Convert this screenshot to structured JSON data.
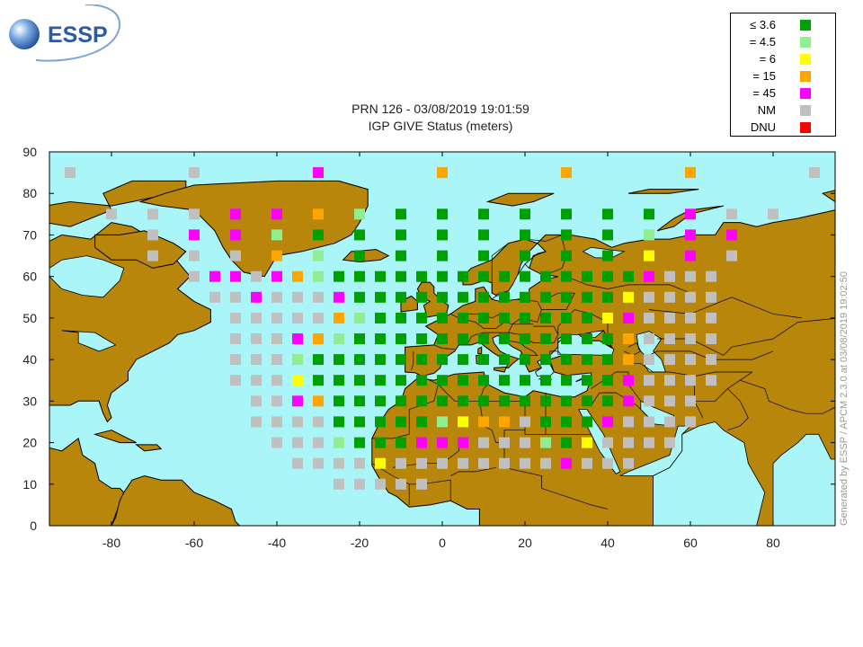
{
  "header": {
    "logo_text": "ESSP",
    "title_line1": "PRN 126 - 03/08/2019 19:01:59",
    "title_line2": "IGP GIVE Status (meters)"
  },
  "legend": [
    {
      "label": "≤ 3.6",
      "color": "#00a000"
    },
    {
      "label": "= 4.5",
      "color": "#90ee90"
    },
    {
      "label": "= 6",
      "color": "#ffff00"
    },
    {
      "label": "= 15",
      "color": "#ffa500"
    },
    {
      "label": "= 45",
      "color": "#ff00ff"
    },
    {
      "label": "NM",
      "color": "#c0c0c0"
    },
    {
      "label": "DNU",
      "color": "#ff0000"
    }
  ],
  "credit": "Generated by ESSP / APCM 2.3.0 at 03/08/2019 19:02:50",
  "colors": {
    "ocean": "#aaf5f8",
    "land": "#b8860b",
    "border": "#000000"
  },
  "chart_data": {
    "type": "map-grid",
    "xlim": [
      -95,
      95
    ],
    "ylim": [
      0,
      90
    ],
    "xticks": [
      "-80",
      "-60",
      "-40",
      "-20",
      "0",
      "20",
      "40",
      "60",
      "80"
    ],
    "xtick_values": [
      -80,
      -60,
      -40,
      -20,
      0,
      20,
      40,
      60,
      80
    ],
    "yticks": [
      "0",
      "10",
      "20",
      "30",
      "40",
      "50",
      "60",
      "70",
      "80",
      "90"
    ],
    "ytick_values": [
      0,
      10,
      20,
      30,
      40,
      50,
      60,
      70,
      80,
      90
    ],
    "status_codes": {
      "G": "≤ 3.6",
      "L": "= 4.5",
      "Y": "= 6",
      "O": "= 15",
      "M": "= 45",
      "N": "NM",
      "R": "DNU"
    },
    "rows": [
      {
        "lat": 85,
        "cells": [
          [
            -90,
            "N"
          ],
          [
            -60,
            "N"
          ],
          [
            -30,
            "M"
          ],
          [
            0,
            "O"
          ],
          [
            30,
            "O"
          ],
          [
            60,
            "O"
          ],
          [
            90,
            "N"
          ]
        ]
      },
      {
        "lat": 75,
        "cells": [
          [
            -80,
            "N"
          ],
          [
            -70,
            "N"
          ],
          [
            -60,
            "N"
          ],
          [
            -50,
            "M"
          ],
          [
            -40,
            "M"
          ],
          [
            -30,
            "O"
          ],
          [
            -20,
            "L"
          ],
          [
            -10,
            "G"
          ],
          [
            0,
            "G"
          ],
          [
            10,
            "G"
          ],
          [
            20,
            "G"
          ],
          [
            30,
            "G"
          ],
          [
            40,
            "G"
          ],
          [
            50,
            "G"
          ],
          [
            60,
            "M"
          ],
          [
            70,
            "N"
          ],
          [
            80,
            "N"
          ]
        ]
      },
      {
        "lat": 70,
        "cells": [
          [
            -70,
            "N"
          ],
          [
            -60,
            "M"
          ],
          [
            -50,
            "M"
          ],
          [
            -40,
            "L"
          ],
          [
            -30,
            "G"
          ],
          [
            -20,
            "G"
          ],
          [
            -10,
            "G"
          ],
          [
            0,
            "G"
          ],
          [
            10,
            "G"
          ],
          [
            20,
            "G"
          ],
          [
            30,
            "G"
          ],
          [
            40,
            "G"
          ],
          [
            50,
            "L"
          ],
          [
            60,
            "M"
          ],
          [
            70,
            "M"
          ]
        ]
      },
      {
        "lat": 65,
        "cells": [
          [
            -70,
            "N"
          ],
          [
            -60,
            "N"
          ],
          [
            -50,
            "N"
          ],
          [
            -40,
            "O"
          ],
          [
            -30,
            "L"
          ],
          [
            -20,
            "G"
          ],
          [
            -10,
            "G"
          ],
          [
            0,
            "G"
          ],
          [
            10,
            "G"
          ],
          [
            20,
            "G"
          ],
          [
            30,
            "G"
          ],
          [
            40,
            "G"
          ],
          [
            50,
            "Y"
          ],
          [
            60,
            "M"
          ],
          [
            70,
            "N"
          ]
        ]
      },
      {
        "lat": 60,
        "cells": [
          [
            -60,
            "N"
          ],
          [
            -55,
            "M"
          ],
          [
            -50,
            "M"
          ],
          [
            -45,
            "N"
          ],
          [
            -40,
            "M"
          ],
          [
            -35,
            "O"
          ],
          [
            -30,
            "L"
          ],
          [
            -25,
            "G"
          ],
          [
            -20,
            "G"
          ],
          [
            -15,
            "G"
          ],
          [
            -10,
            "G"
          ],
          [
            -5,
            "G"
          ],
          [
            0,
            "G"
          ],
          [
            5,
            "G"
          ],
          [
            10,
            "G"
          ],
          [
            15,
            "G"
          ],
          [
            20,
            "G"
          ],
          [
            25,
            "G"
          ],
          [
            30,
            "G"
          ],
          [
            35,
            "G"
          ],
          [
            40,
            "G"
          ],
          [
            45,
            "G"
          ],
          [
            50,
            "M"
          ],
          [
            55,
            "N"
          ],
          [
            60,
            "N"
          ],
          [
            65,
            "N"
          ]
        ]
      },
      {
        "lat": 55,
        "cells": [
          [
            -55,
            "N"
          ],
          [
            -50,
            "N"
          ],
          [
            -45,
            "M"
          ],
          [
            -40,
            "N"
          ],
          [
            -35,
            "N"
          ],
          [
            -30,
            "N"
          ],
          [
            -25,
            "M"
          ],
          [
            -20,
            "G"
          ],
          [
            -15,
            "G"
          ],
          [
            -10,
            "G"
          ],
          [
            -5,
            "G"
          ],
          [
            0,
            "G"
          ],
          [
            5,
            "G"
          ],
          [
            10,
            "G"
          ],
          [
            15,
            "G"
          ],
          [
            20,
            "G"
          ],
          [
            25,
            "G"
          ],
          [
            30,
            "G"
          ],
          [
            35,
            "G"
          ],
          [
            40,
            "G"
          ],
          [
            45,
            "Y"
          ],
          [
            50,
            "N"
          ],
          [
            55,
            "N"
          ],
          [
            60,
            "N"
          ],
          [
            65,
            "N"
          ]
        ]
      },
      {
        "lat": 50,
        "cells": [
          [
            -50,
            "N"
          ],
          [
            -45,
            "N"
          ],
          [
            -40,
            "N"
          ],
          [
            -35,
            "N"
          ],
          [
            -30,
            "N"
          ],
          [
            -25,
            "O"
          ],
          [
            -20,
            "L"
          ],
          [
            -15,
            "G"
          ],
          [
            -10,
            "G"
          ],
          [
            -5,
            "G"
          ],
          [
            0,
            "G"
          ],
          [
            5,
            "G"
          ],
          [
            10,
            "G"
          ],
          [
            15,
            "G"
          ],
          [
            20,
            "G"
          ],
          [
            25,
            "G"
          ],
          [
            30,
            "G"
          ],
          [
            35,
            "G"
          ],
          [
            40,
            "Y"
          ],
          [
            45,
            "M"
          ],
          [
            50,
            "N"
          ],
          [
            55,
            "N"
          ],
          [
            60,
            "N"
          ],
          [
            65,
            "N"
          ]
        ]
      },
      {
        "lat": 45,
        "cells": [
          [
            -50,
            "N"
          ],
          [
            -45,
            "N"
          ],
          [
            -40,
            "N"
          ],
          [
            -35,
            "M"
          ],
          [
            -30,
            "O"
          ],
          [
            -25,
            "L"
          ],
          [
            -20,
            "G"
          ],
          [
            -15,
            "G"
          ],
          [
            -10,
            "G"
          ],
          [
            -5,
            "G"
          ],
          [
            0,
            "G"
          ],
          [
            5,
            "G"
          ],
          [
            10,
            "G"
          ],
          [
            15,
            "G"
          ],
          [
            20,
            "G"
          ],
          [
            25,
            "G"
          ],
          [
            30,
            "G"
          ],
          [
            35,
            "G"
          ],
          [
            40,
            "G"
          ],
          [
            45,
            "O"
          ],
          [
            50,
            "N"
          ],
          [
            55,
            "N"
          ],
          [
            60,
            "N"
          ],
          [
            65,
            "N"
          ]
        ]
      },
      {
        "lat": 40,
        "cells": [
          [
            -50,
            "N"
          ],
          [
            -45,
            "N"
          ],
          [
            -40,
            "N"
          ],
          [
            -35,
            "L"
          ],
          [
            -30,
            "G"
          ],
          [
            -25,
            "G"
          ],
          [
            -20,
            "G"
          ],
          [
            -15,
            "G"
          ],
          [
            -10,
            "G"
          ],
          [
            -5,
            "G"
          ],
          [
            0,
            "G"
          ],
          [
            5,
            "G"
          ],
          [
            10,
            "G"
          ],
          [
            15,
            "G"
          ],
          [
            20,
            "G"
          ],
          [
            25,
            "G"
          ],
          [
            30,
            "G"
          ],
          [
            35,
            "G"
          ],
          [
            40,
            "G"
          ],
          [
            45,
            "O"
          ],
          [
            50,
            "N"
          ],
          [
            55,
            "N"
          ],
          [
            60,
            "N"
          ],
          [
            65,
            "N"
          ]
        ]
      },
      {
        "lat": 35,
        "cells": [
          [
            -50,
            "N"
          ],
          [
            -45,
            "N"
          ],
          [
            -40,
            "N"
          ],
          [
            -35,
            "Y"
          ],
          [
            -30,
            "G"
          ],
          [
            -25,
            "G"
          ],
          [
            -20,
            "G"
          ],
          [
            -15,
            "G"
          ],
          [
            -10,
            "G"
          ],
          [
            -5,
            "G"
          ],
          [
            0,
            "G"
          ],
          [
            5,
            "G"
          ],
          [
            10,
            "G"
          ],
          [
            15,
            "G"
          ],
          [
            20,
            "G"
          ],
          [
            25,
            "G"
          ],
          [
            30,
            "G"
          ],
          [
            35,
            "G"
          ],
          [
            40,
            "G"
          ],
          [
            45,
            "M"
          ],
          [
            50,
            "N"
          ],
          [
            55,
            "N"
          ],
          [
            60,
            "N"
          ],
          [
            65,
            "N"
          ]
        ]
      },
      {
        "lat": 30,
        "cells": [
          [
            -45,
            "N"
          ],
          [
            -40,
            "N"
          ],
          [
            -35,
            "M"
          ],
          [
            -30,
            "O"
          ],
          [
            -25,
            "G"
          ],
          [
            -20,
            "G"
          ],
          [
            -15,
            "G"
          ],
          [
            -10,
            "G"
          ],
          [
            -5,
            "G"
          ],
          [
            0,
            "G"
          ],
          [
            5,
            "G"
          ],
          [
            10,
            "G"
          ],
          [
            15,
            "G"
          ],
          [
            20,
            "G"
          ],
          [
            25,
            "G"
          ],
          [
            30,
            "G"
          ],
          [
            35,
            "G"
          ],
          [
            40,
            "G"
          ],
          [
            45,
            "M"
          ],
          [
            50,
            "N"
          ],
          [
            55,
            "N"
          ],
          [
            60,
            "N"
          ]
        ]
      },
      {
        "lat": 25,
        "cells": [
          [
            -45,
            "N"
          ],
          [
            -40,
            "N"
          ],
          [
            -35,
            "N"
          ],
          [
            -30,
            "N"
          ],
          [
            -25,
            "G"
          ],
          [
            -20,
            "G"
          ],
          [
            -15,
            "G"
          ],
          [
            -10,
            "G"
          ],
          [
            -5,
            "G"
          ],
          [
            0,
            "L"
          ],
          [
            5,
            "Y"
          ],
          [
            10,
            "O"
          ],
          [
            15,
            "O"
          ],
          [
            20,
            "N"
          ],
          [
            25,
            "G"
          ],
          [
            30,
            "G"
          ],
          [
            35,
            "G"
          ],
          [
            40,
            "M"
          ],
          [
            45,
            "N"
          ],
          [
            50,
            "N"
          ],
          [
            55,
            "N"
          ],
          [
            60,
            "N"
          ]
        ]
      },
      {
        "lat": 20,
        "cells": [
          [
            -40,
            "N"
          ],
          [
            -35,
            "N"
          ],
          [
            -30,
            "N"
          ],
          [
            -25,
            "L"
          ],
          [
            -20,
            "G"
          ],
          [
            -15,
            "G"
          ],
          [
            -10,
            "G"
          ],
          [
            -5,
            "M"
          ],
          [
            0,
            "M"
          ],
          [
            5,
            "M"
          ],
          [
            10,
            "N"
          ],
          [
            15,
            "N"
          ],
          [
            20,
            "N"
          ],
          [
            25,
            "L"
          ],
          [
            30,
            "G"
          ],
          [
            35,
            "Y"
          ],
          [
            40,
            "N"
          ],
          [
            45,
            "N"
          ],
          [
            50,
            "N"
          ],
          [
            55,
            "N"
          ]
        ]
      },
      {
        "lat": 15,
        "cells": [
          [
            -35,
            "N"
          ],
          [
            -30,
            "N"
          ],
          [
            -25,
            "N"
          ],
          [
            -20,
            "N"
          ],
          [
            -15,
            "Y"
          ],
          [
            -10,
            "N"
          ],
          [
            -5,
            "N"
          ],
          [
            0,
            "N"
          ],
          [
            5,
            "N"
          ],
          [
            10,
            "N"
          ],
          [
            15,
            "N"
          ],
          [
            20,
            "N"
          ],
          [
            25,
            "N"
          ],
          [
            30,
            "M"
          ],
          [
            35,
            "N"
          ],
          [
            40,
            "N"
          ],
          [
            45,
            "N"
          ]
        ]
      },
      {
        "lat": 10,
        "cells": [
          [
            -25,
            "N"
          ],
          [
            -20,
            "N"
          ],
          [
            -15,
            "N"
          ],
          [
            -10,
            "N"
          ],
          [
            -5,
            "N"
          ]
        ]
      }
    ]
  }
}
